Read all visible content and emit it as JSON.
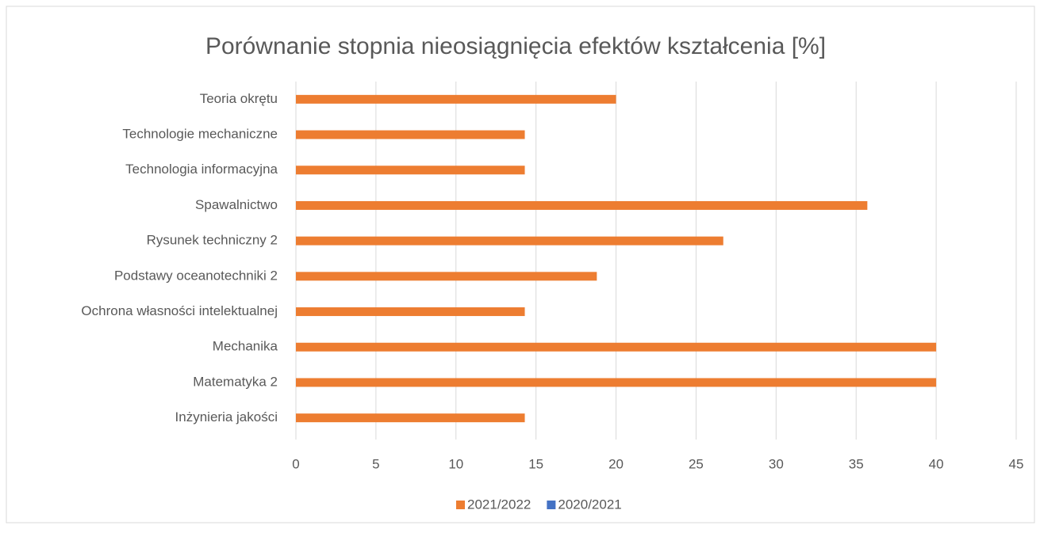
{
  "chart_data": {
    "type": "bar",
    "orientation": "horizontal",
    "title": "Porównanie stopnia nieosiągnięcia efektów kształcenia [%]",
    "categories": [
      "Teoria okrętu",
      "Technologie mechaniczne",
      "Technologia informacyjna",
      "Spawalnictwo",
      "Rysunek techniczny 2",
      "Podstawy oceanotechniki 2",
      "Ochrona własności intelektualnej",
      "Mechanika",
      "Matematyka 2",
      "Inżynieria jakości"
    ],
    "series": [
      {
        "name": "2021/2022",
        "color": "#ed7d31",
        "values": [
          20,
          14.3,
          14.3,
          35.7,
          26.7,
          18.8,
          14.3,
          40,
          40,
          14.3
        ]
      },
      {
        "name": "2020/2021",
        "color": "#4472c4",
        "values": [
          0,
          0,
          0,
          0,
          0,
          0,
          0,
          0,
          0,
          0
        ]
      }
    ],
    "xlim": [
      0,
      45
    ],
    "xticks": [
      0,
      5,
      10,
      15,
      20,
      25,
      30,
      35,
      40,
      45
    ],
    "grid": true,
    "legend": "bottom"
  }
}
